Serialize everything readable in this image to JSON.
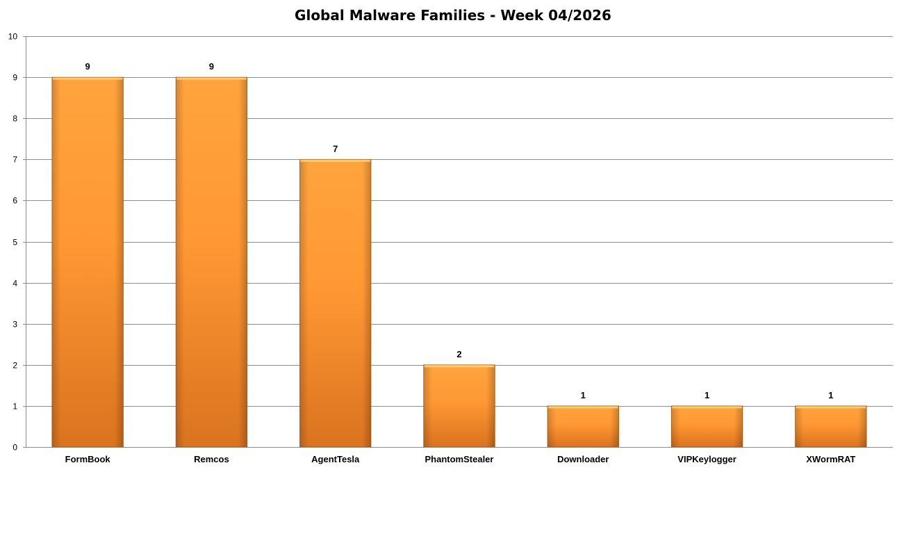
{
  "chart_data": {
    "type": "bar",
    "title": "Global Malware Families - Week 04/2026",
    "xlabel": "",
    "ylabel": "",
    "categories": [
      "FormBook",
      "Remcos",
      "AgentTesla",
      "PhantomStealer",
      "Downloader",
      "VIPKeylogger",
      "XWormRAT"
    ],
    "values": [
      9,
      9,
      7,
      2,
      1,
      1,
      1
    ],
    "ylim": [
      0,
      10
    ],
    "yticks": [
      0,
      1,
      2,
      3,
      4,
      5,
      6,
      7,
      8,
      9,
      10
    ],
    "grid": true,
    "legend": "none",
    "data_labels": true,
    "colors": {
      "bar_light": "#ffa43d",
      "bar_mid": "#ff9833",
      "bar_dark": "#d9731f",
      "bar_edge": "#b85c12",
      "grid": "#8c8c8c"
    }
  }
}
